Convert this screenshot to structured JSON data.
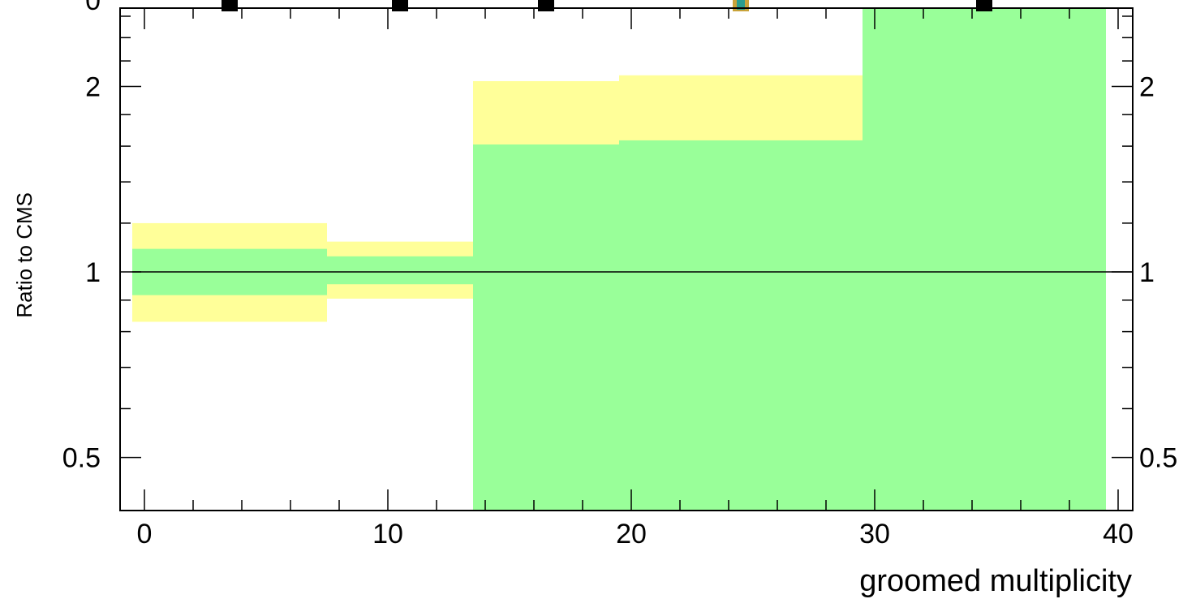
{
  "chart_data": {
    "type": "area",
    "title": "",
    "xlabel": "groomed multiplicity",
    "ylabel": "Ratio to CMS",
    "xlim": [
      -1,
      40.6
    ],
    "ylim": [
      0.41,
      2.68
    ],
    "yscale": "log",
    "reference_line": 1,
    "x_ticks": [
      0,
      10,
      20,
      30,
      40
    ],
    "x_tick_labels": [
      "0",
      "10",
      "20",
      "30",
      "40"
    ],
    "y_ticks": [
      0.5,
      1,
      2
    ],
    "y_tick_labels": [
      "0.5",
      "1",
      "2"
    ],
    "top_panel_fragment": {
      "visible_tick_label": "0",
      "marker_x": [
        3.5,
        10.5,
        16.5,
        24.5,
        34.5
      ]
    },
    "bins": [
      {
        "x_low": -0.5,
        "x_high": 7.5,
        "inner_low": 0.917,
        "inner_high": 1.09,
        "outer_low": 0.83,
        "outer_high": 1.2
      },
      {
        "x_low": 7.5,
        "x_high": 13.5,
        "inner_low": 0.955,
        "inner_high": 1.06,
        "outer_low": 0.905,
        "outer_high": 1.12
      },
      {
        "x_low": 13.5,
        "x_high": 19.5,
        "inner_low": 0.41,
        "inner_high": 1.61,
        "outer_low": 0.43,
        "outer_high": 2.04
      },
      {
        "x_low": 19.5,
        "x_high": 29.5,
        "inner_low": 0.41,
        "inner_high": 1.635,
        "outer_low": 0.415,
        "outer_high": 2.085
      },
      {
        "x_low": 29.5,
        "x_high": 39.5,
        "inner_low": 0.41,
        "inner_high": 2.68,
        "outer_low": 0.41,
        "outer_high": 2.68
      }
    ],
    "bands": [
      {
        "name": "inner",
        "color": "#99ff99"
      },
      {
        "name": "outer",
        "color": "#ffff99"
      }
    ],
    "grid": false,
    "legend": "none"
  }
}
